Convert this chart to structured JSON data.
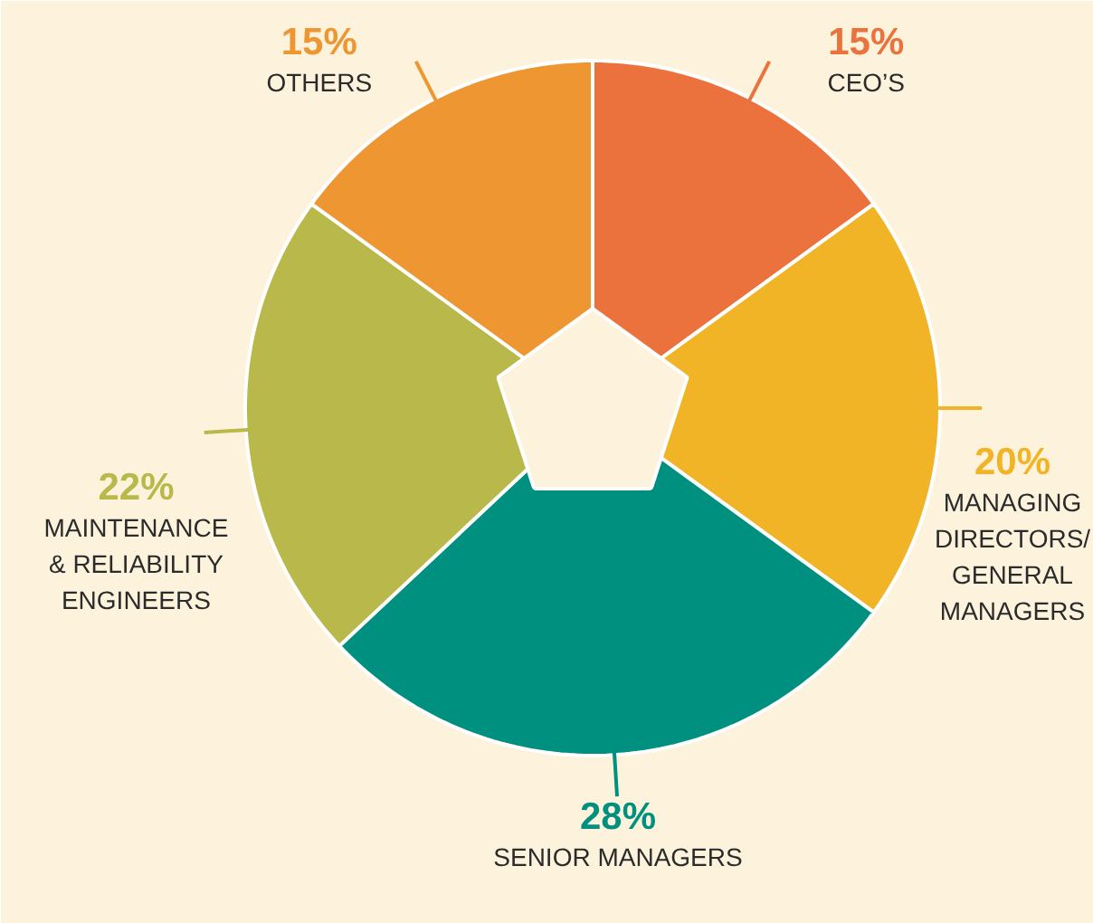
{
  "chart_data": {
    "type": "donut",
    "categories": [
      "CEO’S",
      "MANAGING\nDIRECTORS/\nGENERAL\nMANAGERS",
      "SENIOR MANAGERS",
      "MAINTENANCE\n& RELIABILITY\nENGINEERS",
      "OTHERS"
    ],
    "values": [
      15,
      20,
      28,
      22,
      15
    ],
    "colors": [
      "#eb723c",
      "#f2b427",
      "#00907f",
      "#b9b84b",
      "#ee9632"
    ],
    "value_labels": [
      "15%",
      "20%",
      "28%",
      "22%",
      "15%"
    ]
  }
}
